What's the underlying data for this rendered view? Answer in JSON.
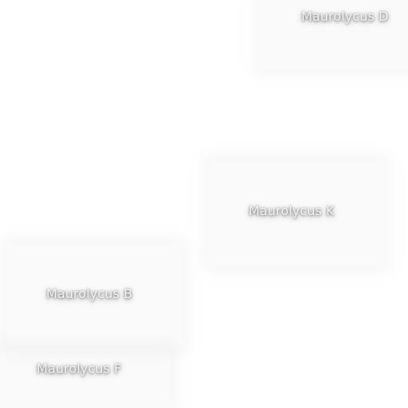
{
  "map_labels": {
    "maurolycus_d": "Maurolycus D",
    "maurolycus_k": "Maurolycus K",
    "maurolycus_b": "Maurolycus B",
    "maurolycus_f": "Maurolycus F"
  }
}
